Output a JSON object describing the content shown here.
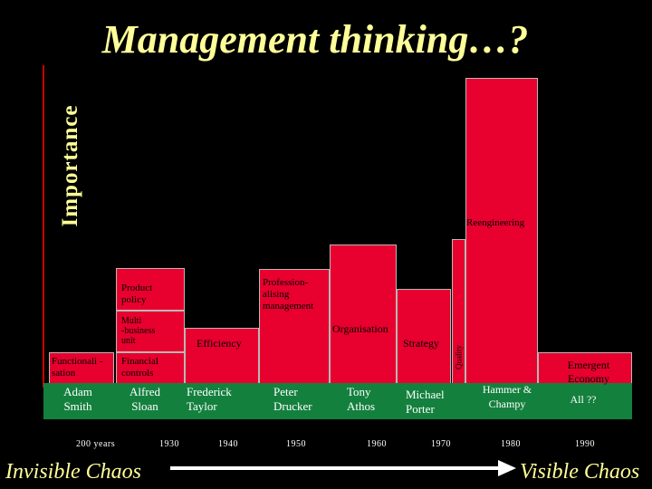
{
  "title": "Management thinking…?",
  "y_axis_label": "Importance",
  "bars": [
    {
      "id": "functionalisation",
      "label_lines": [
        "Functionali -",
        "sation"
      ]
    },
    {
      "id": "financial-controls",
      "label_lines": [
        "Financial",
        "controls"
      ]
    },
    {
      "id": "multi-business-unit",
      "label_lines": [
        "Multi",
        "-business",
        "unit"
      ]
    },
    {
      "id": "product-policy",
      "label_lines": [
        "Product",
        "policy"
      ]
    },
    {
      "id": "efficiency",
      "label_lines": [
        "Efficiency"
      ]
    },
    {
      "id": "professionalising",
      "label_lines": [
        "Profession-",
        "alising",
        "management"
      ]
    },
    {
      "id": "organisation",
      "label_lines": [
        "Organisation"
      ]
    },
    {
      "id": "strategy",
      "label_lines": [
        "Strategy"
      ]
    },
    {
      "id": "quality",
      "label_lines": [
        "Quality"
      ]
    },
    {
      "id": "reengineering",
      "label_lines": [
        "Reengineering"
      ]
    },
    {
      "id": "emergent-economy",
      "label_lines": [
        "Emergent",
        "Economy"
      ]
    }
  ],
  "thinkers": [
    {
      "id": "adam-smith",
      "lines": [
        "Adam",
        "Smith"
      ]
    },
    {
      "id": "alfred-sloan",
      "lines": [
        "Alfred",
        "Sloan"
      ]
    },
    {
      "id": "frederick-taylor",
      "lines": [
        "Frederick",
        "Taylor"
      ]
    },
    {
      "id": "peter-drucker",
      "lines": [
        "Peter",
        "Drucker"
      ]
    },
    {
      "id": "tony-athos",
      "lines": [
        "Tony",
        "Athos"
      ]
    },
    {
      "id": "michael-porter",
      "lines": [
        "Michael",
        "Porter"
      ]
    },
    {
      "id": "hammer-champy",
      "lines": [
        "Hammer &",
        "Champy"
      ]
    },
    {
      "id": "all",
      "lines": [
        "All ??"
      ]
    }
  ],
  "years": [
    "200 years",
    "1930",
    "1940",
    "1950",
    "1960",
    "1970",
    "1980",
    "1990"
  ],
  "left_caption": "Invisible Chaos",
  "right_caption": "Visible Chaos",
  "colors": {
    "bar": "#E8002E",
    "title": "#FFFF99",
    "band": "#14803E",
    "axis": "#CC0000"
  }
}
